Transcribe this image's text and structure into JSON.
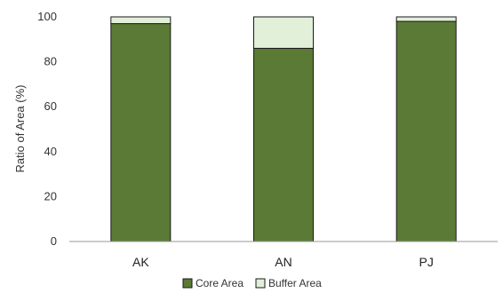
{
  "chart_data": {
    "type": "bar",
    "stacked": true,
    "categories": [
      "AK",
      "AN",
      "PJ"
    ],
    "series": [
      {
        "name": "Core Area",
        "values": [
          97,
          86,
          98
        ],
        "color": "#5b7a35"
      },
      {
        "name": "Buffer Area",
        "values": [
          3,
          14,
          2
        ],
        "color": "#e2efd9"
      }
    ],
    "ylabel": "Ratio of Area (%)",
    "ylim": [
      0,
      100
    ],
    "yticks": [
      "0",
      "20",
      "40",
      "60",
      "80",
      "100"
    ],
    "grid": false,
    "legend": "bottom",
    "bar_edge_color": "#1a1a1a"
  }
}
